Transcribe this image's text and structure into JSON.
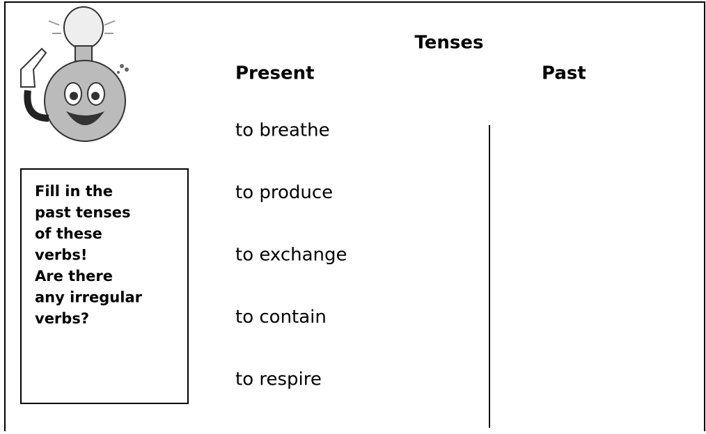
{
  "title": "Tenses",
  "headers": {
    "present": "Present",
    "past": "Past"
  },
  "verbs": [
    "to breathe",
    "to produce",
    "to exchange",
    "to contain",
    "to respire"
  ],
  "instruction": [
    "Fill in the",
    "past tenses",
    "of these",
    "verbs!",
    "Are there",
    "any irregular",
    "verbs?"
  ]
}
